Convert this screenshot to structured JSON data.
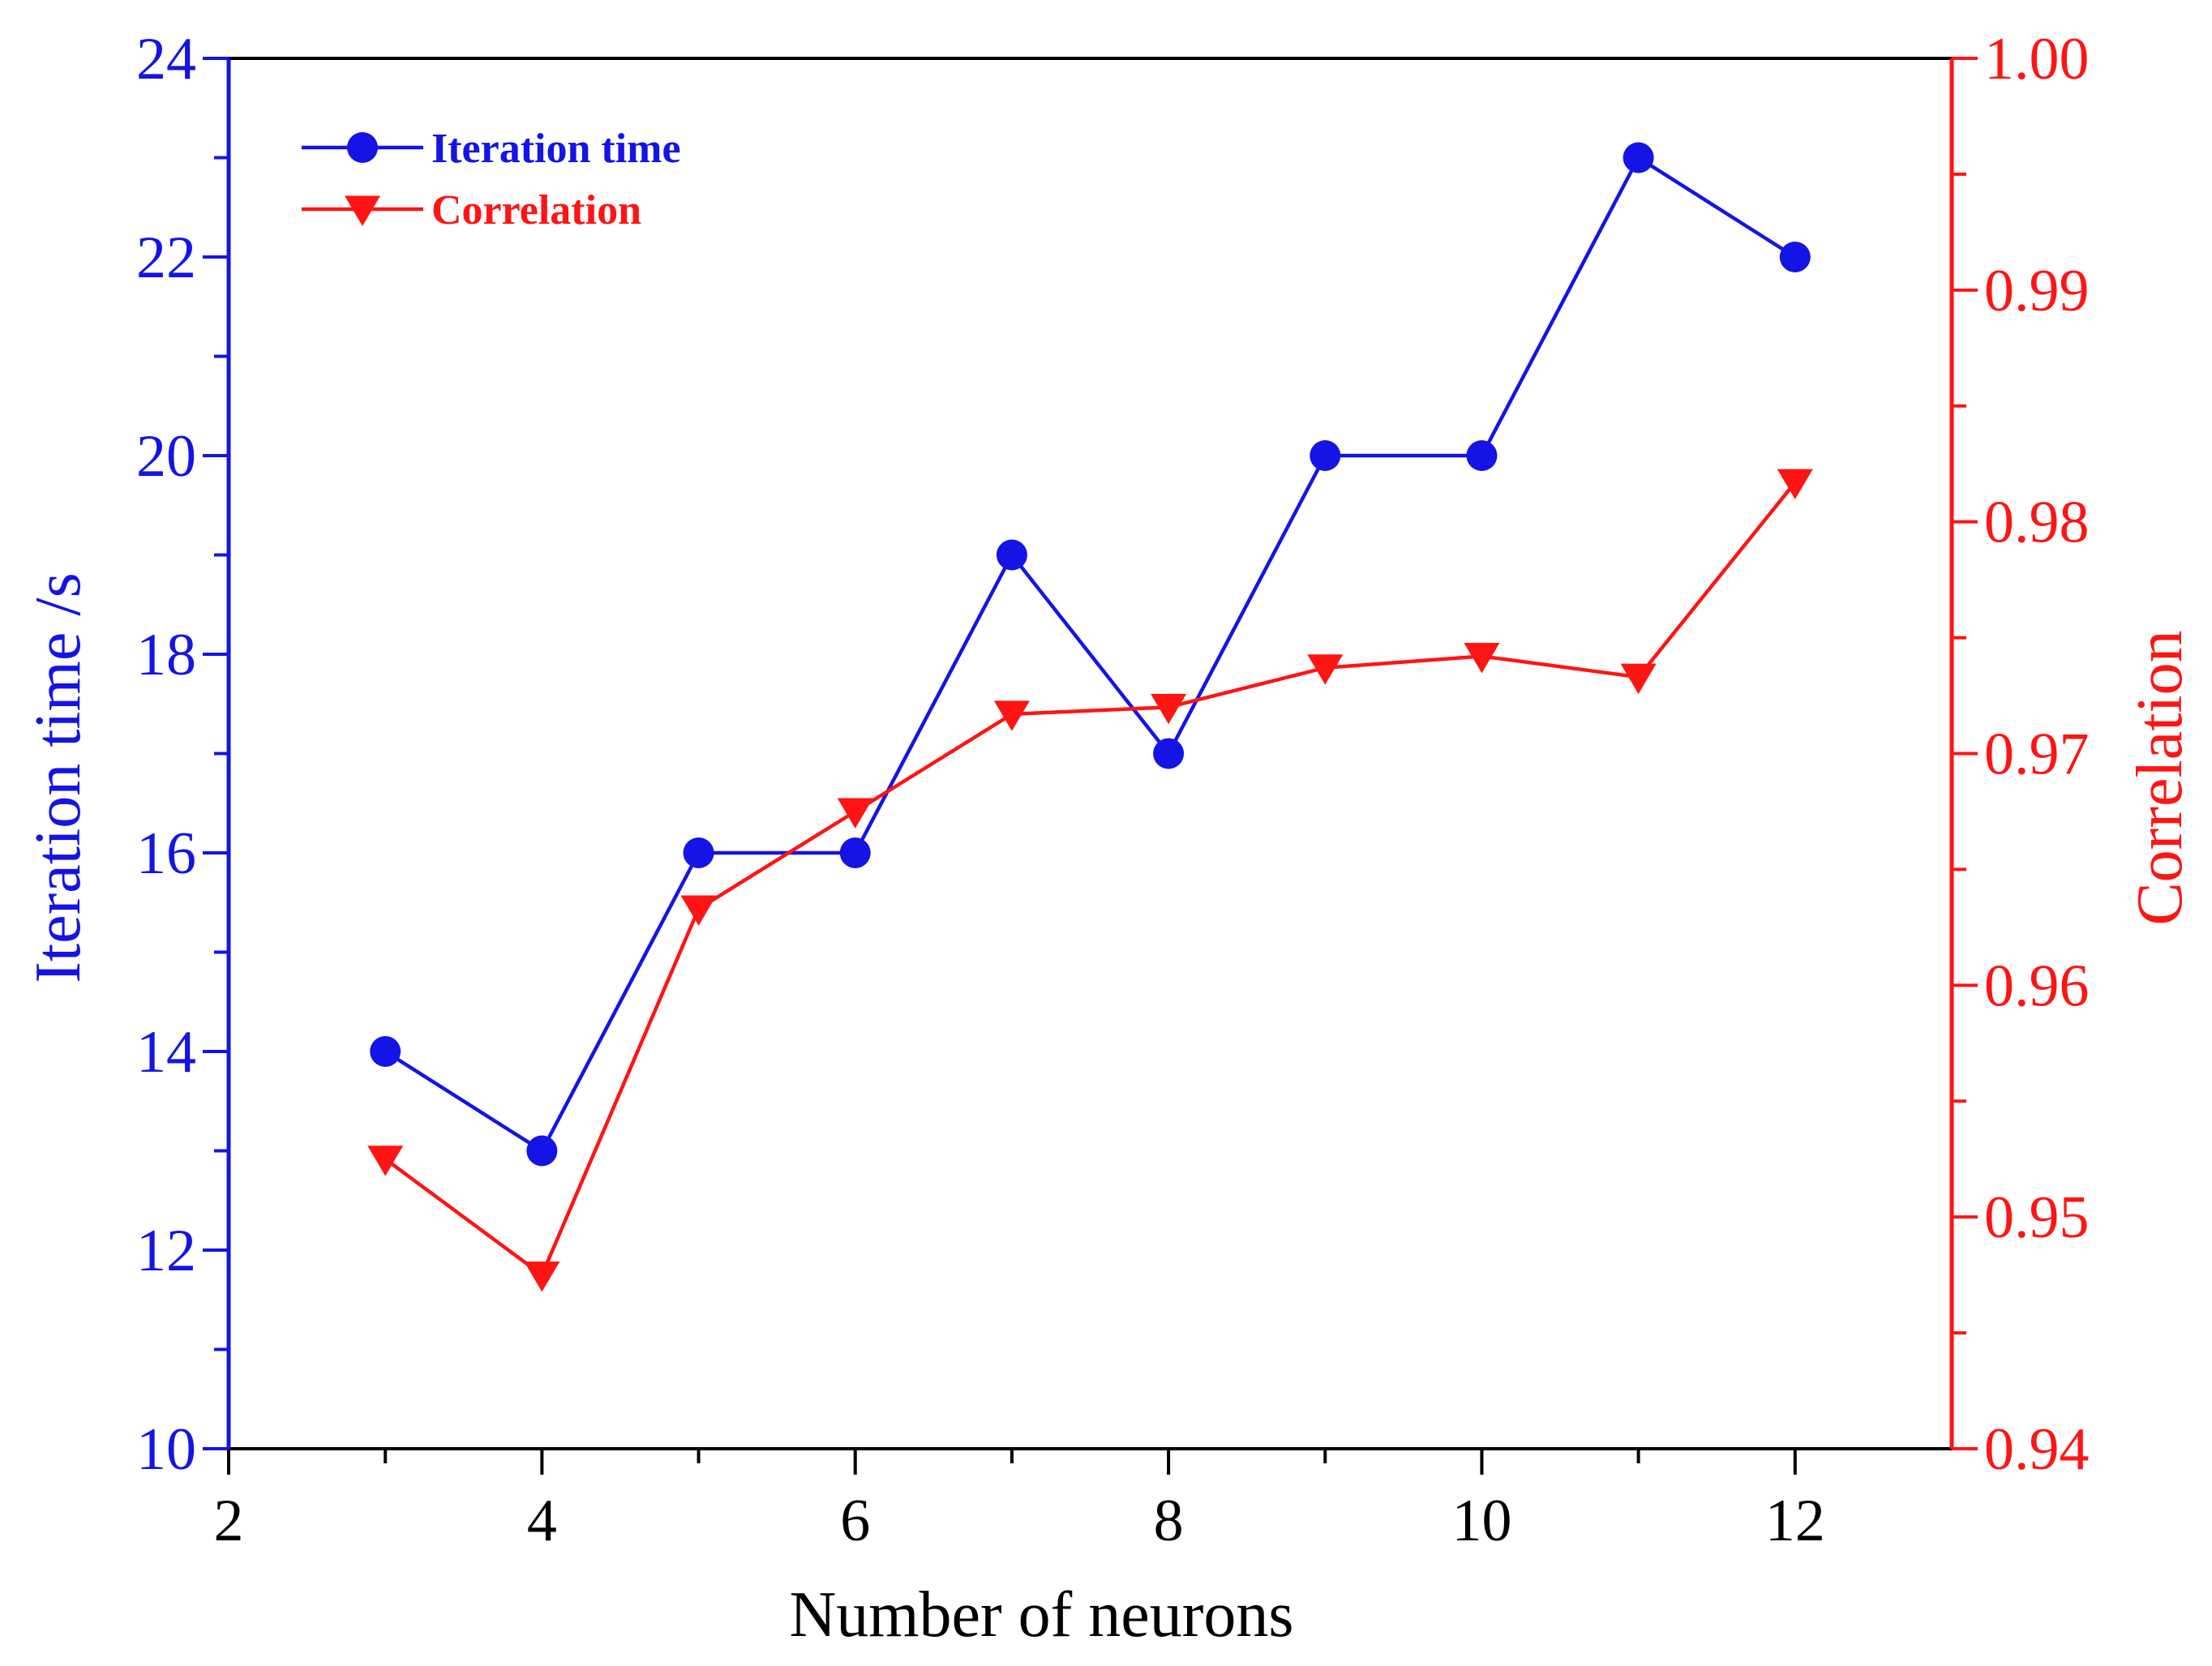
{
  "chart_data": {
    "type": "line",
    "title": "",
    "xlabel": "Number of neurons",
    "ylabel_left": "Iteration time /s",
    "ylabel_right": "Correlation",
    "xlim": [
      2,
      13
    ],
    "ylim_left": [
      10,
      24
    ],
    "ylim_right": [
      0.94,
      1.0
    ],
    "x_ticks": [
      2,
      4,
      6,
      8,
      10,
      12
    ],
    "x_tick_labels": [
      "2",
      "4",
      "6",
      "8",
      "10",
      "12"
    ],
    "y_left_ticks": [
      10,
      12,
      14,
      16,
      18,
      20,
      22,
      24
    ],
    "y_left_tick_labels": [
      "10",
      "12",
      "14",
      "16",
      "18",
      "20",
      "22",
      "24"
    ],
    "y_right_ticks": [
      0.94,
      0.95,
      0.96,
      0.97,
      0.98,
      0.99,
      1.0
    ],
    "y_right_tick_labels": [
      "0.94",
      "0.95",
      "0.96",
      "0.97",
      "0.98",
      "0.99",
      "1.00"
    ],
    "grid": false,
    "legend_position": "top-left",
    "x": [
      3,
      4,
      5,
      6,
      7,
      8,
      9,
      10,
      11,
      12
    ],
    "series": [
      {
        "name": "Iteration time",
        "axis": "left",
        "color": "#1414e6",
        "marker": "circle",
        "values": [
          14,
          13,
          16,
          16,
          19,
          17,
          20,
          20,
          23,
          22
        ]
      },
      {
        "name": "Correlation",
        "axis": "right",
        "color": "#ff1414",
        "marker": "triangle-down",
        "values": [
          0.9525,
          0.9475,
          0.9633,
          0.9675,
          0.9717,
          0.972,
          0.9737,
          0.9742,
          0.9733,
          0.9817
        ]
      }
    ],
    "colors": {
      "left_axis": "#1414e6",
      "right_axis": "#ff1414",
      "frame": "#000000"
    }
  }
}
